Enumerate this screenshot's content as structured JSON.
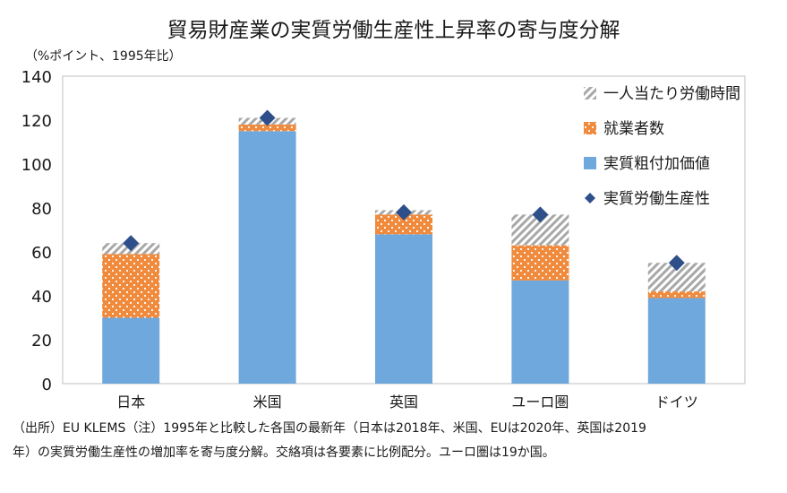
{
  "title": "貿易財産業の実質労働生産性上昇率の寄与度分解",
  "unit_label": "（%ポイント、1995年比）",
  "note_line1": "（出所）EU KLEMS（注）1995年と比較した各国の最新年（日本は2018年、米国、EUは2020年、英国は2019",
  "note_line2": "年）の実質労働生産性の増加率を寄与度分解。交絡項は各要素に比例配分。ユーロ圏は19か国。",
  "colors": {
    "value_added": "#6fa8dc",
    "employees": "#f08a3c",
    "hours_hatch": "#a8a8a8",
    "marker": "#2e4f8a"
  },
  "chart_data": {
    "type": "bar",
    "stacked": true,
    "categories": [
      "日本",
      "米国",
      "英国",
      "ユーロ圏",
      "ドイツ"
    ],
    "series": [
      {
        "name": "実質粗付加価値",
        "values": [
          30,
          115,
          68,
          47,
          39
        ]
      },
      {
        "name": "就業者数",
        "values": [
          29,
          3,
          9,
          16,
          3
        ]
      },
      {
        "name": "一人当たり労働時間",
        "values": [
          5,
          3,
          2,
          14,
          13
        ]
      }
    ],
    "marker_series": {
      "name": "実質労働生産性",
      "values": [
        64,
        121,
        78,
        77,
        55
      ]
    },
    "ylim": [
      0,
      140
    ],
    "yticks": [
      "0",
      "20",
      "40",
      "60",
      "80",
      "100",
      "120",
      "140"
    ],
    "legend_position": "top-right",
    "grid": false
  }
}
